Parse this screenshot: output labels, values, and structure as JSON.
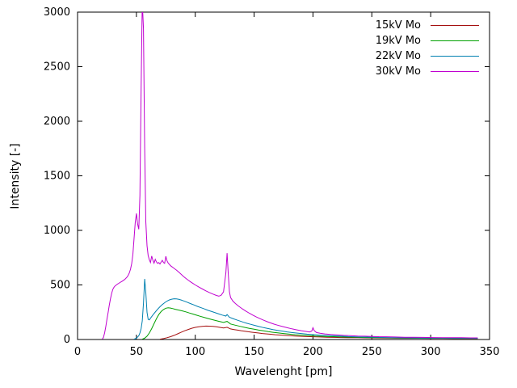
{
  "figure": {
    "background": "#ffffff",
    "border_color": "#000000",
    "text_color": "#000000"
  },
  "chart_data": {
    "type": "line",
    "title": "",
    "xlabel": "Wavelenght [pm]",
    "ylabel": "Intensity [-]",
    "xlim": [
      0,
      350
    ],
    "ylim": [
      0,
      3000
    ],
    "x_ticks": [
      0,
      50,
      100,
      150,
      200,
      250,
      300,
      350
    ],
    "y_ticks": [
      0,
      500,
      1000,
      1500,
      2000,
      2500,
      3000
    ],
    "grid": false,
    "legend_position": "top-right",
    "series": [
      {
        "name": "15kV Mo",
        "color": "#a51010",
        "points": [
          [
            70,
            3
          ],
          [
            73,
            8
          ],
          [
            76,
            16
          ],
          [
            79,
            26
          ],
          [
            82,
            38
          ],
          [
            85,
            52
          ],
          [
            88,
            66
          ],
          [
            91,
            80
          ],
          [
            94,
            92
          ],
          [
            97,
            103
          ],
          [
            100,
            111
          ],
          [
            103,
            117
          ],
          [
            106,
            121
          ],
          [
            109,
            123
          ],
          [
            112,
            122
          ],
          [
            115,
            120
          ],
          [
            118,
            116
          ],
          [
            121,
            111
          ],
          [
            124,
            106
          ],
          [
            127,
            112
          ],
          [
            130,
            97
          ],
          [
            133,
            91
          ],
          [
            136,
            86
          ],
          [
            139,
            81
          ],
          [
            142,
            76
          ],
          [
            145,
            71
          ],
          [
            148,
            67
          ],
          [
            151,
            63
          ],
          [
            154,
            59
          ],
          [
            157,
            55
          ],
          [
            160,
            52
          ],
          [
            164,
            48
          ],
          [
            168,
            44
          ],
          [
            172,
            41
          ],
          [
            176,
            38
          ],
          [
            180,
            35
          ],
          [
            185,
            32
          ],
          [
            190,
            29
          ],
          [
            195,
            27
          ],
          [
            200,
            25
          ],
          [
            206,
            23
          ],
          [
            212,
            21
          ],
          [
            218,
            19
          ],
          [
            224,
            18
          ],
          [
            230,
            17
          ],
          [
            238,
            16
          ],
          [
            246,
            15
          ],
          [
            254,
            14
          ],
          [
            262,
            13
          ],
          [
            270,
            12
          ],
          [
            280,
            11
          ],
          [
            290,
            11
          ],
          [
            300,
            10
          ],
          [
            310,
            10
          ],
          [
            320,
            9
          ],
          [
            330,
            9
          ],
          [
            340,
            9
          ]
        ]
      },
      {
        "name": "19kV Mo",
        "color": "#00a000",
        "points": [
          [
            55,
            3
          ],
          [
            57,
            12
          ],
          [
            59,
            30
          ],
          [
            61,
            60
          ],
          [
            63,
            100
          ],
          [
            65,
            145
          ],
          [
            67,
            190
          ],
          [
            69,
            228
          ],
          [
            71,
            256
          ],
          [
            73,
            275
          ],
          [
            75,
            287
          ],
          [
            77,
            291
          ],
          [
            79,
            288
          ],
          [
            81,
            283
          ],
          [
            83,
            277
          ],
          [
            86,
            270
          ],
          [
            89,
            262
          ],
          [
            92,
            253
          ],
          [
            95,
            243
          ],
          [
            98,
            233
          ],
          [
            101,
            223
          ],
          [
            104,
            213
          ],
          [
            108,
            201
          ],
          [
            112,
            189
          ],
          [
            116,
            178
          ],
          [
            120,
            167
          ],
          [
            124,
            156
          ],
          [
            127,
            166
          ],
          [
            130,
            142
          ],
          [
            134,
            131
          ],
          [
            138,
            121
          ],
          [
            142,
            111
          ],
          [
            146,
            102
          ],
          [
            150,
            94
          ],
          [
            154,
            86
          ],
          [
            158,
            79
          ],
          [
            162,
            72
          ],
          [
            166,
            66
          ],
          [
            170,
            61
          ],
          [
            175,
            55
          ],
          [
            180,
            49
          ],
          [
            185,
            44
          ],
          [
            190,
            40
          ],
          [
            196,
            36
          ],
          [
            202,
            32
          ],
          [
            208,
            29
          ],
          [
            214,
            27
          ],
          [
            220,
            25
          ],
          [
            228,
            22
          ],
          [
            236,
            20
          ],
          [
            244,
            18
          ],
          [
            252,
            17
          ],
          [
            260,
            16
          ],
          [
            270,
            14
          ],
          [
            280,
            13
          ],
          [
            290,
            12
          ],
          [
            300,
            12
          ],
          [
            310,
            11
          ],
          [
            320,
            10
          ],
          [
            330,
            10
          ],
          [
            340,
            10
          ]
        ]
      },
      {
        "name": "22kV Mo",
        "color": "#0080b0",
        "points": [
          [
            48,
            3
          ],
          [
            50,
            12
          ],
          [
            52,
            35
          ],
          [
            53,
            60
          ],
          [
            54,
            100
          ],
          [
            55,
            170
          ],
          [
            56,
            330
          ],
          [
            57,
            555
          ],
          [
            58,
            430
          ],
          [
            59,
            250
          ],
          [
            60,
            185
          ],
          [
            61,
            180
          ],
          [
            62,
            195
          ],
          [
            64,
            225
          ],
          [
            66,
            252
          ],
          [
            68,
            277
          ],
          [
            70,
            300
          ],
          [
            72,
            320
          ],
          [
            74,
            337
          ],
          [
            76,
            352
          ],
          [
            78,
            363
          ],
          [
            80,
            370
          ],
          [
            82,
            373
          ],
          [
            84,
            372
          ],
          [
            86,
            368
          ],
          [
            88,
            362
          ],
          [
            90,
            354
          ],
          [
            93,
            342
          ],
          [
            96,
            329
          ],
          [
            99,
            316
          ],
          [
            102,
            303
          ],
          [
            105,
            291
          ],
          [
            108,
            279
          ],
          [
            111,
            267
          ],
          [
            114,
            256
          ],
          [
            117,
            245
          ],
          [
            120,
            234
          ],
          [
            123,
            224
          ],
          [
            126,
            215
          ],
          [
            127,
            228
          ],
          [
            129,
            204
          ],
          [
            132,
            192
          ],
          [
            135,
            180
          ],
          [
            138,
            169
          ],
          [
            141,
            158
          ],
          [
            144,
            148
          ],
          [
            147,
            139
          ],
          [
            150,
            130
          ],
          [
            154,
            119
          ],
          [
            158,
            109
          ],
          [
            162,
            100
          ],
          [
            166,
            91
          ],
          [
            170,
            84
          ],
          [
            174,
            77
          ],
          [
            178,
            70
          ],
          [
            182,
            64
          ],
          [
            186,
            59
          ],
          [
            190,
            55
          ],
          [
            195,
            49
          ],
          [
            200,
            45
          ],
          [
            206,
            40
          ],
          [
            212,
            36
          ],
          [
            218,
            33
          ],
          [
            224,
            30
          ],
          [
            230,
            27
          ],
          [
            238,
            24
          ],
          [
            246,
            22
          ],
          [
            254,
            20
          ],
          [
            262,
            18
          ],
          [
            270,
            17
          ],
          [
            280,
            15
          ],
          [
            290,
            14
          ],
          [
            300,
            13
          ],
          [
            310,
            13
          ],
          [
            320,
            12
          ],
          [
            330,
            12
          ],
          [
            340,
            11
          ]
        ]
      },
      {
        "name": "30kV Mo",
        "color": "#c000d0",
        "points": [
          [
            21,
            2
          ],
          [
            22,
            20
          ],
          [
            23,
            60
          ],
          [
            24,
            120
          ],
          [
            25,
            185
          ],
          [
            26,
            250
          ],
          [
            27,
            315
          ],
          [
            28,
            375
          ],
          [
            29,
            425
          ],
          [
            30,
            460
          ],
          [
            31,
            480
          ],
          [
            32,
            492
          ],
          [
            33,
            500
          ],
          [
            34,
            508
          ],
          [
            35,
            515
          ],
          [
            36,
            522
          ],
          [
            37,
            528
          ],
          [
            38,
            535
          ],
          [
            39,
            542
          ],
          [
            40,
            550
          ],
          [
            41,
            560
          ],
          [
            42,
            572
          ],
          [
            43,
            588
          ],
          [
            44,
            610
          ],
          [
            45,
            645
          ],
          [
            46,
            695
          ],
          [
            47,
            780
          ],
          [
            48,
            920
          ],
          [
            49,
            1070
          ],
          [
            50,
            1155
          ],
          [
            51,
            1060
          ],
          [
            52,
            1010
          ],
          [
            53,
            1320
          ],
          [
            54,
            2300
          ],
          [
            55,
            3100
          ],
          [
            56,
            2850
          ],
          [
            57,
            1750
          ],
          [
            58,
            1080
          ],
          [
            59,
            860
          ],
          [
            60,
            770
          ],
          [
            61,
            730
          ],
          [
            62,
            705
          ],
          [
            63,
            765
          ],
          [
            64,
            725
          ],
          [
            65,
            700
          ],
          [
            66,
            735
          ],
          [
            67,
            712
          ],
          [
            68,
            698
          ],
          [
            69,
            705
          ],
          [
            70,
            692
          ],
          [
            71,
            710
          ],
          [
            72,
            725
          ],
          [
            73,
            705
          ],
          [
            74,
            698
          ],
          [
            75,
            762
          ],
          [
            76,
            722
          ],
          [
            77,
            700
          ],
          [
            78,
            688
          ],
          [
            79,
            676
          ],
          [
            80,
            668
          ],
          [
            82,
            652
          ],
          [
            84,
            636
          ],
          [
            86,
            618
          ],
          [
            88,
            598
          ],
          [
            90,
            578
          ],
          [
            92,
            560
          ],
          [
            94,
            544
          ],
          [
            96,
            528
          ],
          [
            98,
            514
          ],
          [
            100,
            500
          ],
          [
            103,
            481
          ],
          [
            106,
            463
          ],
          [
            109,
            446
          ],
          [
            112,
            430
          ],
          [
            115,
            416
          ],
          [
            118,
            404
          ],
          [
            120,
            397
          ],
          [
            122,
            406
          ],
          [
            124,
            436
          ],
          [
            126,
            610
          ],
          [
            127,
            792
          ],
          [
            128,
            610
          ],
          [
            129,
            438
          ],
          [
            130,
            385
          ],
          [
            132,
            352
          ],
          [
            134,
            330
          ],
          [
            136,
            312
          ],
          [
            138,
            296
          ],
          [
            140,
            281
          ],
          [
            143,
            260
          ],
          [
            146,
            241
          ],
          [
            149,
            223
          ],
          [
            152,
            206
          ],
          [
            155,
            191
          ],
          [
            158,
            177
          ],
          [
            161,
            164
          ],
          [
            164,
            152
          ],
          [
            167,
            141
          ],
          [
            170,
            131
          ],
          [
            174,
            119
          ],
          [
            178,
            108
          ],
          [
            182,
            98
          ],
          [
            186,
            89
          ],
          [
            190,
            81
          ],
          [
            194,
            74
          ],
          [
            197,
            69
          ],
          [
            199,
            78
          ],
          [
            200,
            108
          ],
          [
            201,
            82
          ],
          [
            203,
            64
          ],
          [
            206,
            57
          ],
          [
            210,
            51
          ],
          [
            215,
            46
          ],
          [
            220,
            42
          ],
          [
            226,
            38
          ],
          [
            232,
            35
          ],
          [
            238,
            32
          ],
          [
            244,
            30
          ],
          [
            250,
            28
          ],
          [
            256,
            26
          ],
          [
            262,
            25
          ],
          [
            270,
            23
          ],
          [
            278,
            21
          ],
          [
            286,
            20
          ],
          [
            294,
            19
          ],
          [
            302,
            18
          ],
          [
            310,
            17
          ],
          [
            318,
            16
          ],
          [
            326,
            16
          ],
          [
            334,
            15
          ],
          [
            340,
            15
          ]
        ]
      }
    ],
    "legend": [
      {
        "label": "15kV Mo",
        "color": "#a51010"
      },
      {
        "label": "19kV Mo",
        "color": "#00a000"
      },
      {
        "label": "22kV Mo",
        "color": "#0080b0"
      },
      {
        "label": "30kV Mo",
        "color": "#c000d0"
      }
    ]
  }
}
